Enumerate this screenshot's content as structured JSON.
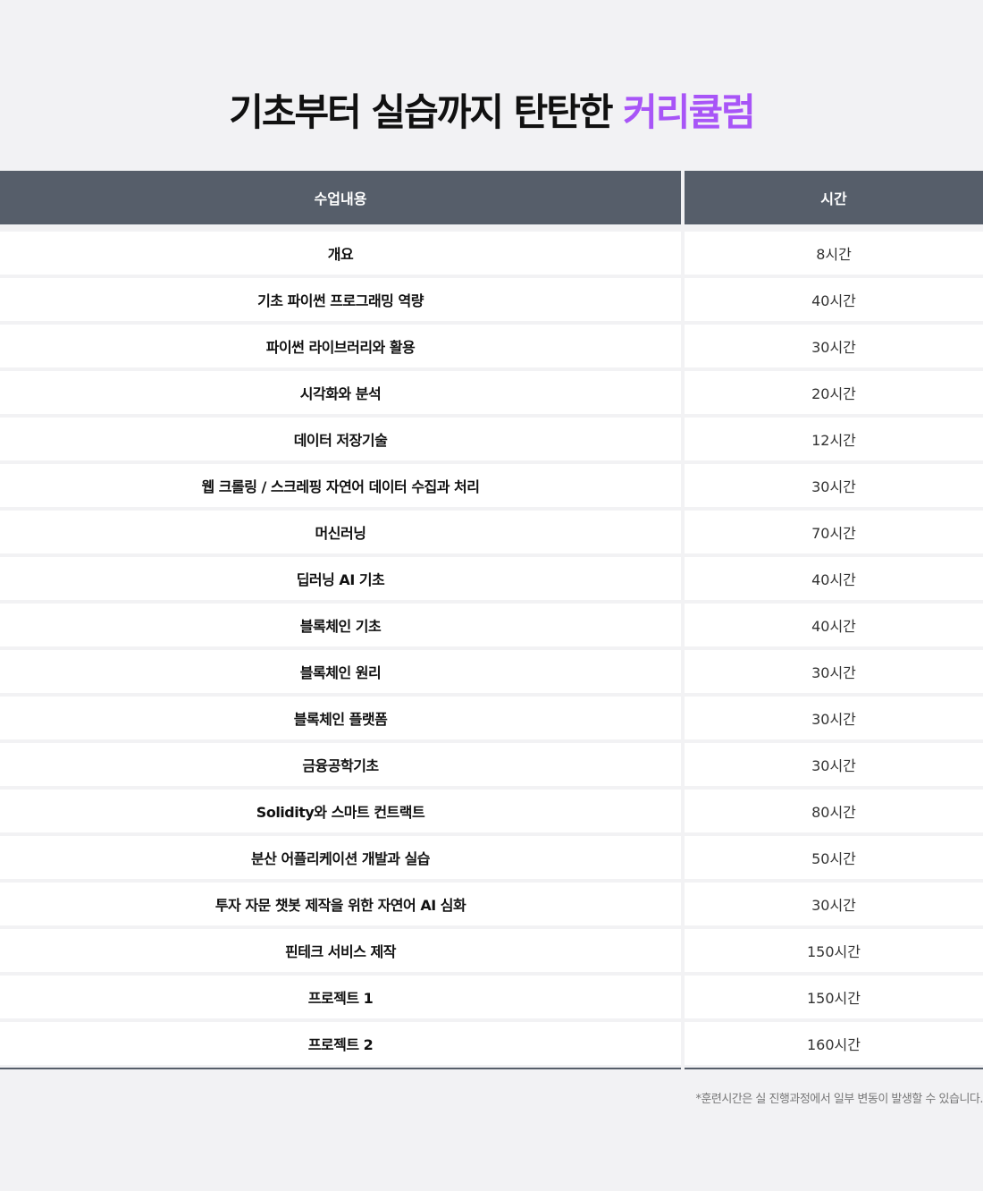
{
  "title": {
    "main": "기초부터 실습까지 탄탄한 ",
    "accent": "커리큘럼",
    "accent_color": "#a855f7"
  },
  "table": {
    "headers": [
      "수업내용",
      "시간"
    ],
    "header_color": "#565e6a",
    "rows": [
      {
        "course": "개요",
        "hours": "8시간"
      },
      {
        "course": "기초 파이썬 프로그래밍 역량",
        "hours": "40시간"
      },
      {
        "course": "파이썬 라이브러리와 활용",
        "hours": "30시간"
      },
      {
        "course": "시각화와 분석",
        "hours": "20시간"
      },
      {
        "course": "데이터 저장기술",
        "hours": "12시간"
      },
      {
        "course": "웹 크롤링 / 스크레핑 자연어 데이터 수집과 처리",
        "hours": "30시간"
      },
      {
        "course": "머신러닝",
        "hours": "70시간"
      },
      {
        "course": "딥러닝 AI 기초",
        "hours": "40시간"
      },
      {
        "course": "블록체인 기초",
        "hours": "40시간"
      },
      {
        "course": "블록체인 원리",
        "hours": "30시간"
      },
      {
        "course": "블록체인 플랫폼",
        "hours": "30시간"
      },
      {
        "course": "금융공학기초",
        "hours": "30시간"
      },
      {
        "course": "Solidity와 스마트 컨트랙트",
        "hours": "80시간"
      },
      {
        "course": "분산 어플리케이션 개발과 실습",
        "hours": "50시간"
      },
      {
        "course": "투자 자문 챗봇 제작을 위한 자연어 AI 심화",
        "hours": "30시간"
      },
      {
        "course": "핀테크 서비스 제작",
        "hours": "150시간"
      },
      {
        "course": "프로젝트 1",
        "hours": "150시간"
      },
      {
        "course": "프로젝트 2",
        "hours": "160시간"
      }
    ]
  },
  "footnote": "*훈련시간은 실 진행과정에서 일부 변동이 발생할 수 있습니다."
}
